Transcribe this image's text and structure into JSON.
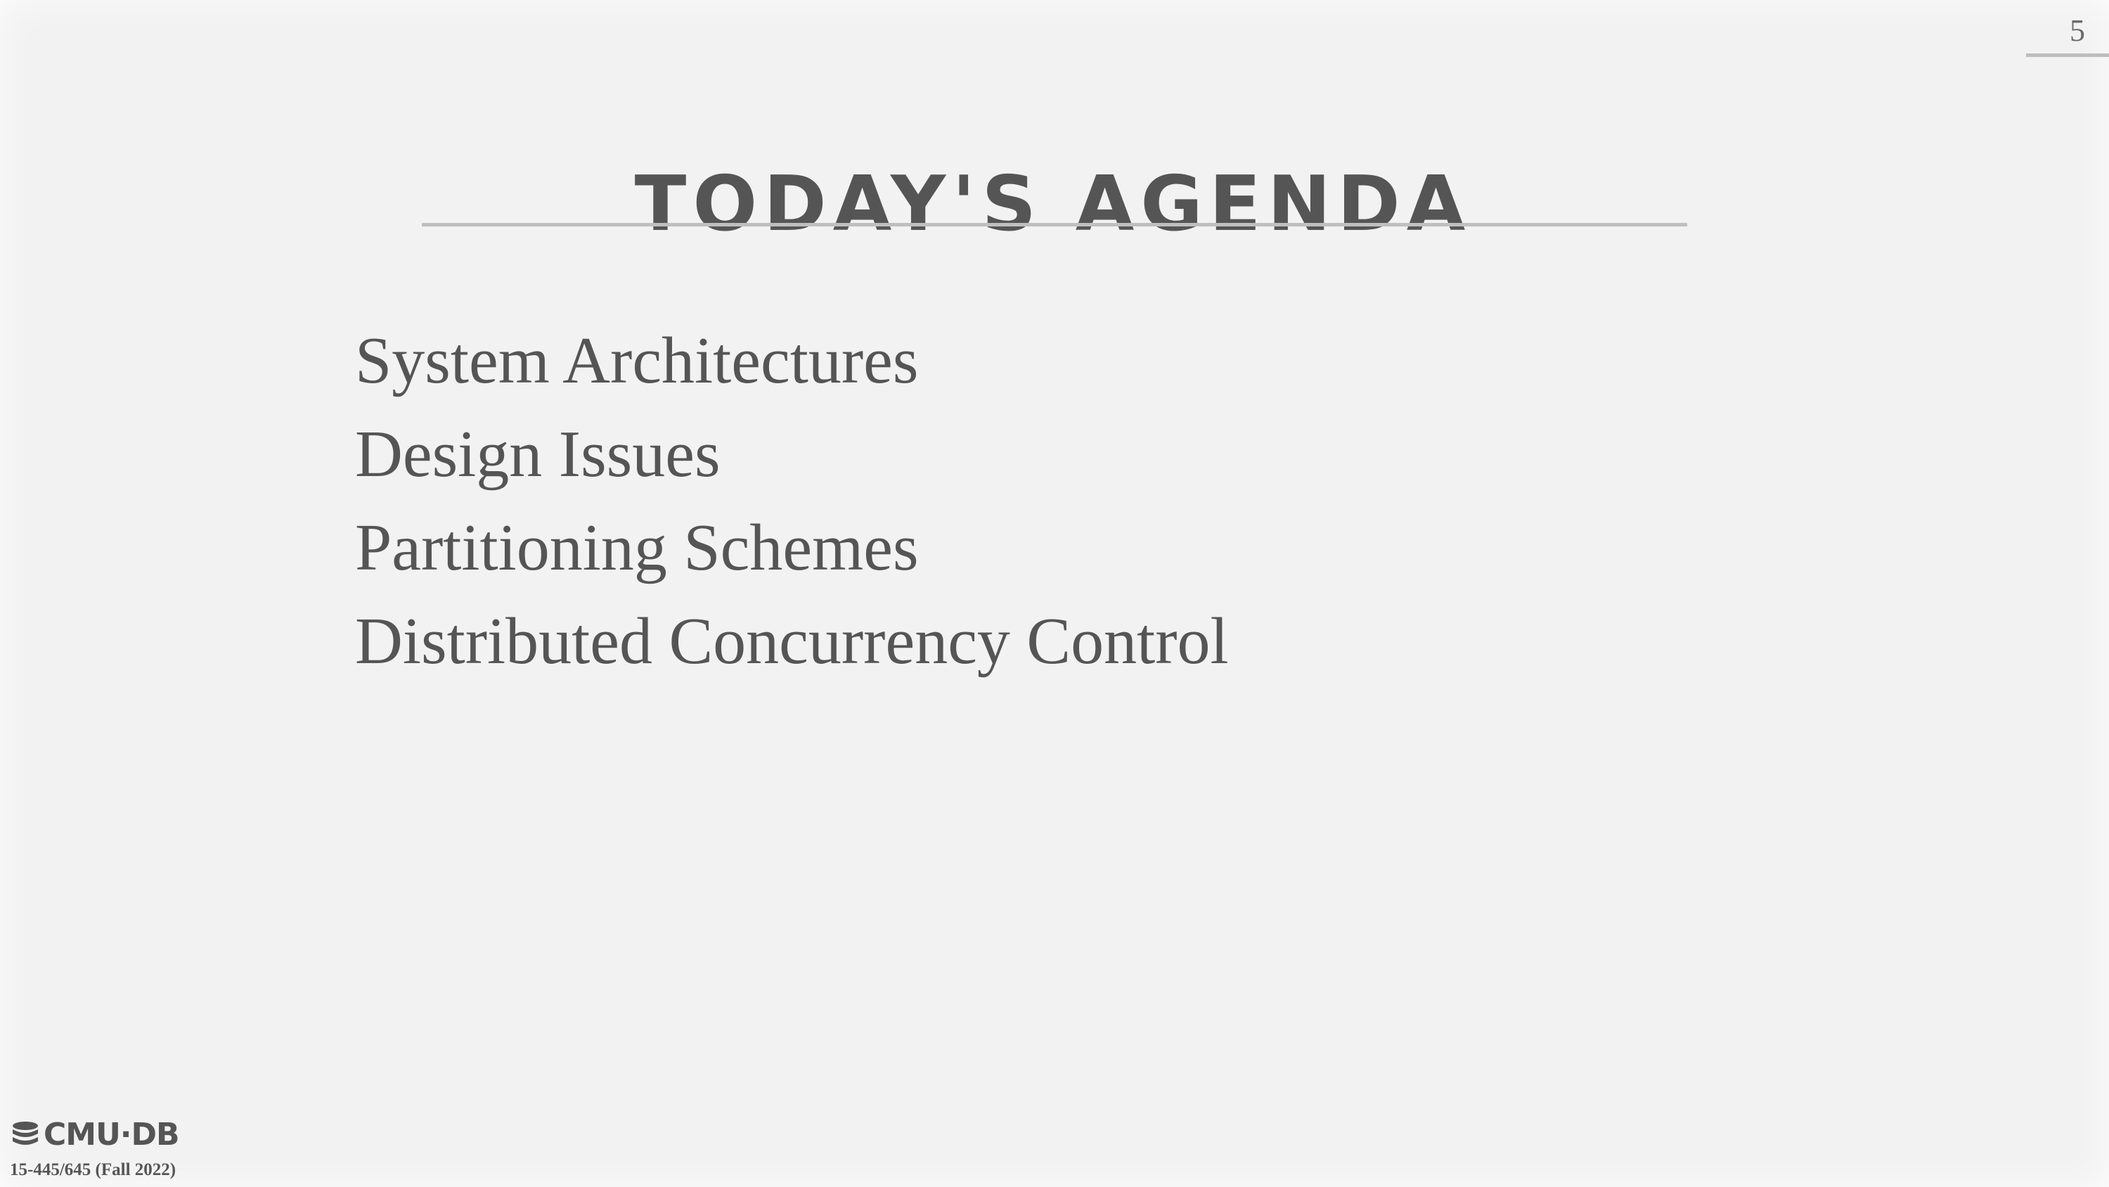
{
  "slide": {
    "page_number": "5",
    "title": "TODAY'S AGENDA",
    "agenda_items": [
      "System Architectures",
      "Design Issues",
      "Partitioning Schemes",
      "Distributed Concurrency Control"
    ]
  },
  "footer": {
    "logo_text": "CMU·DB",
    "course": "15-445/645 (Fall 2022)"
  },
  "colors": {
    "background": "#f2f2f2",
    "text": "#555555",
    "rule": "#bfbfbf"
  }
}
